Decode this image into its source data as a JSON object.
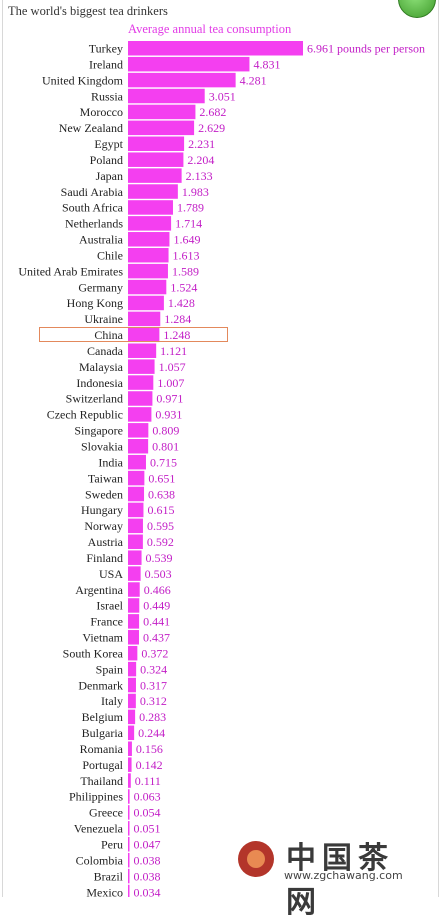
{
  "title": "The world's biggest tea drinkers",
  "subtitle": "Average annual tea consumption",
  "highlight": "China",
  "watermark": {
    "text": "中国茶网",
    "url": "www.zgchawang.com"
  },
  "colors": {
    "bar": "#f43ff0",
    "value_text": "#c21ec6",
    "highlight_box": "#e3895c"
  },
  "chart_data": {
    "type": "bar",
    "orientation": "horizontal",
    "title": "The world's biggest tea drinkers",
    "subtitle": "Average annual tea consumption",
    "unit_label": "pounds per person",
    "categories": [
      "Turkey",
      "Ireland",
      "United Kingdom",
      "Russia",
      "Morocco",
      "New Zealand",
      "Egypt",
      "Poland",
      "Japan",
      "Saudi Arabia",
      "South Africa",
      "Netherlands",
      "Australia",
      "Chile",
      "United Arab Emirates",
      "Germany",
      "Hong Kong",
      "Ukraine",
      "China",
      "Canada",
      "Malaysia",
      "Indonesia",
      "Switzerland",
      "Czech Republic",
      "Singapore",
      "Slovakia",
      "India",
      "Taiwan",
      "Sweden",
      "Hungary",
      "Norway",
      "Austria",
      "Finland",
      "USA",
      "Argentina",
      "Israel",
      "France",
      "Vietnam",
      "South Korea",
      "Spain",
      "Denmark",
      "Italy",
      "Belgium",
      "Bulgaria",
      "Romania",
      "Portugal",
      "Thailand",
      "Philippines",
      "Greece",
      "Venezuela",
      "Peru",
      "Colombia",
      "Brazil",
      "Mexico"
    ],
    "values": [
      6.961,
      4.831,
      4.281,
      3.051,
      2.682,
      2.629,
      2.231,
      2.204,
      2.133,
      1.983,
      1.789,
      1.714,
      1.649,
      1.613,
      1.589,
      1.524,
      1.428,
      1.284,
      1.248,
      1.121,
      1.057,
      1.007,
      0.971,
      0.931,
      0.809,
      0.801,
      0.715,
      0.651,
      0.638,
      0.615,
      0.595,
      0.592,
      0.539,
      0.503,
      0.466,
      0.449,
      0.441,
      0.437,
      0.372,
      0.324,
      0.317,
      0.312,
      0.283,
      0.244,
      0.156,
      0.142,
      0.111,
      0.063,
      0.054,
      0.051,
      0.047,
      0.038,
      0.038,
      0.034
    ],
    "value_labels": [
      "6.961 pounds per person",
      "4.831",
      "4.281",
      "3.051",
      "2.682",
      "2.629",
      "2.231",
      "2.204",
      "2.133",
      "1.983",
      "1.789",
      "1.714",
      "1.649",
      "1.613",
      "1.589",
      "1.524",
      "1.428",
      "1.284",
      "1.248",
      "1.121",
      "1.057",
      "1.007",
      "0.971",
      "0.931",
      "0.809",
      "0.801",
      "0.715",
      "0.651",
      "0.638",
      "0.615",
      "0.595",
      "0.592",
      "0.539",
      "0.503",
      "0.466",
      "0.449",
      "0.441",
      "0.437",
      "0.372",
      "0.324",
      "0.317",
      "0.312",
      "0.283",
      "0.244",
      "0.156",
      "0.142",
      "0.111",
      "0.063",
      "0.054",
      "0.051",
      "0.047",
      "0.038",
      "0.038",
      "0.034"
    ],
    "grid": false,
    "legend": "none"
  }
}
